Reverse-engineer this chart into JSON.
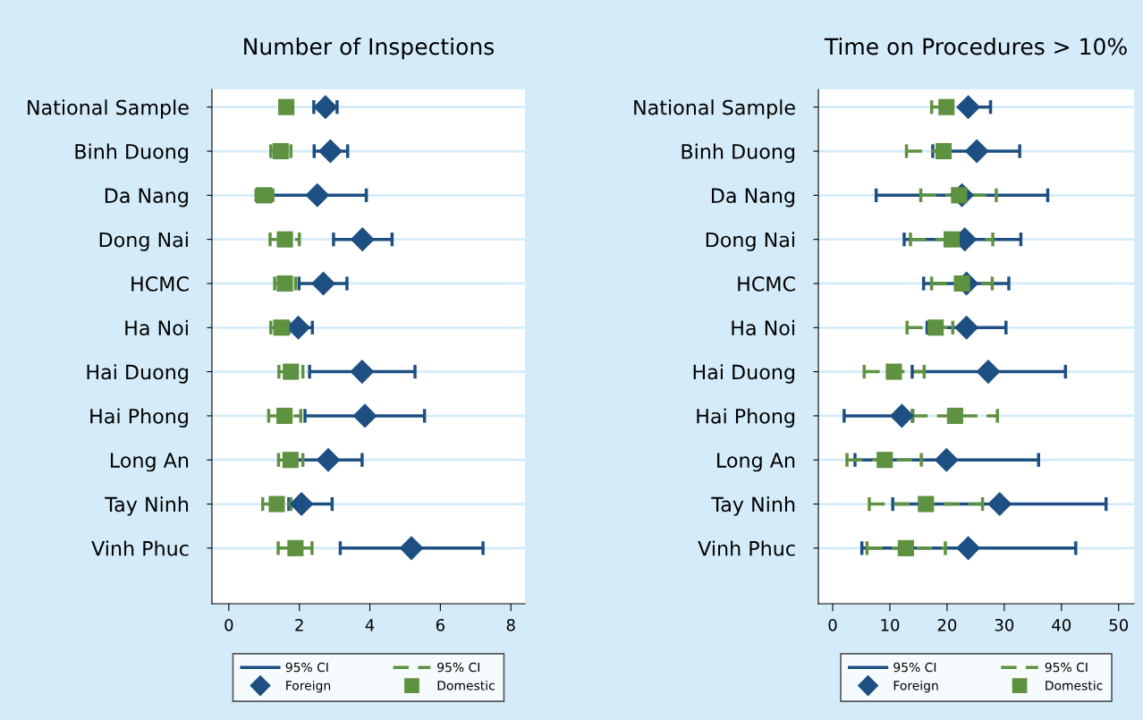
{
  "chart_data": [
    {
      "type": "scatter",
      "orientation": "horizontal",
      "title": "Number of Inspections",
      "categories": [
        "National Sample",
        "Binh Duong",
        "Da Nang",
        "Dong Nai",
        "HCMC",
        "Ha Noi",
        "Hai Duong",
        "Hai Phong",
        "Long An",
        "Tay Ninh",
        "Vinh Phuc"
      ],
      "series": [
        {
          "name": "Foreign",
          "color": "#1d4f82",
          "marker": "diamond",
          "line_style": "solid",
          "values": [
            2.74,
            2.88,
            2.51,
            3.79,
            2.68,
            1.97,
            3.78,
            3.86,
            2.82,
            2.06,
            5.18
          ],
          "errors": [
            [
              2.41,
              3.07
            ],
            [
              2.42,
              3.37
            ],
            [
              1.2,
              3.9
            ],
            [
              2.97,
              4.63
            ],
            [
              1.99,
              3.35
            ],
            [
              1.7,
              2.37
            ],
            [
              2.29,
              5.28
            ],
            [
              2.16,
              5.55
            ],
            [
              1.9,
              3.78
            ],
            [
              1.7,
              2.93
            ],
            [
              3.16,
              7.21
            ]
          ]
        },
        {
          "name": "Domestic",
          "color": "#5e9140",
          "marker": "square",
          "line_style": "dashed",
          "values": [
            1.63,
            1.47,
            1.0,
            1.59,
            1.59,
            1.49,
            1.76,
            1.58,
            1.75,
            1.36,
            1.89
          ],
          "errors": [
            null,
            [
              1.19,
              1.76
            ],
            [
              0.77,
              1.25
            ],
            [
              1.17,
              2.0
            ],
            [
              1.3,
              1.89
            ],
            [
              1.19,
              1.49
            ],
            [
              1.42,
              2.1
            ],
            [
              1.13,
              2.04
            ],
            [
              1.41,
              2.1
            ],
            [
              0.96,
              1.76
            ],
            [
              1.4,
              2.36
            ]
          ]
        }
      ],
      "xlim": [
        -0.48,
        8.4
      ],
      "xticks": [
        0,
        2,
        4,
        6,
        8
      ],
      "grid": "y",
      "legend": "bottom",
      "annotations": [
        "95% CI",
        "95% CI"
      ]
    },
    {
      "type": "scatter",
      "orientation": "horizontal",
      "title": "Time on Procedures > 10%",
      "categories": [
        "National Sample",
        "Binh Duong",
        "Da Nang",
        "Dong Nai",
        "HCMC",
        "Ha Noi",
        "Hai Duong",
        "Hai Phong",
        "Long An",
        "Tay Ninh",
        "Vinh Phuc"
      ],
      "series": [
        {
          "name": "Foreign",
          "color": "#1d4f82",
          "marker": "diamond",
          "line_style": "solid",
          "values": [
            23.7,
            25.2,
            22.6,
            23.1,
            23.4,
            23.4,
            27.2,
            12.1,
            19.9,
            29.2,
            23.7
          ],
          "errors": [
            [
              23.7,
              27.6
            ],
            [
              17.5,
              32.7
            ],
            [
              7.6,
              37.6
            ],
            [
              12.5,
              32.9
            ],
            [
              15.9,
              30.8
            ],
            [
              16.5,
              30.3
            ],
            [
              13.9,
              40.7
            ],
            [
              2.0,
              14.0
            ],
            [
              3.9,
              36.0
            ],
            [
              10.5,
              47.8
            ],
            [
              5.1,
              42.5
            ]
          ]
        },
        {
          "name": "Domestic",
          "color": "#5e9140",
          "marker": "square",
          "line_style": "dashed",
          "values": [
            19.9,
            19.4,
            22.1,
            20.8,
            22.6,
            18.0,
            10.7,
            21.4,
            9.1,
            16.3,
            12.8
          ],
          "errors": [
            [
              17.3,
              19.9
            ],
            [
              12.9,
              19.4
            ],
            [
              15.4,
              28.6
            ],
            [
              13.6,
              28.0
            ],
            [
              17.3,
              27.9
            ],
            [
              13.0,
              21.0
            ],
            [
              5.5,
              16.0
            ],
            [
              13.9,
              28.8
            ],
            [
              2.5,
              15.5
            ],
            [
              6.4,
              26.2
            ],
            [
              6.0,
              19.7
            ]
          ]
        }
      ],
      "xlim": [
        -2.5,
        52.7
      ],
      "xticks": [
        0,
        10,
        20,
        30,
        40,
        50
      ],
      "grid": "y",
      "legend": "bottom",
      "annotations": [
        "95% CI",
        "95% CI"
      ]
    }
  ]
}
